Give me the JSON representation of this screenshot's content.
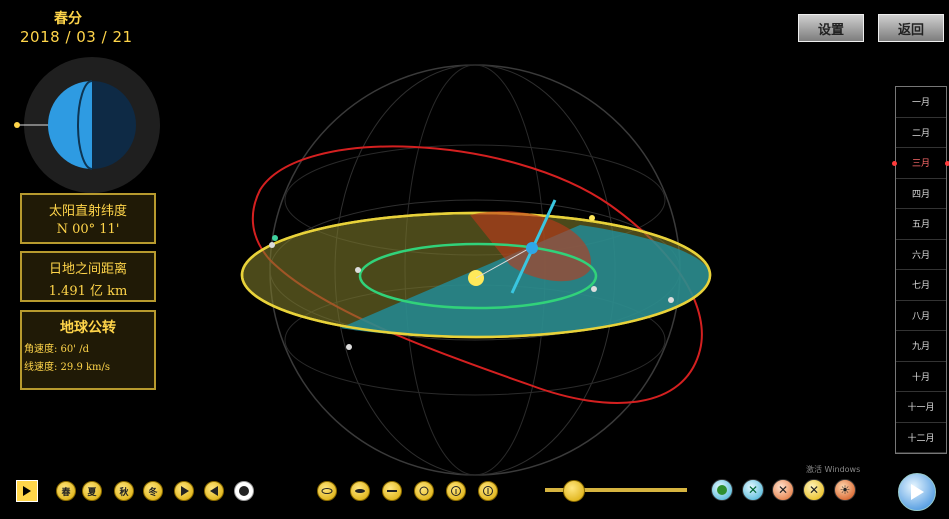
{
  "header": {
    "season": "春分",
    "date": "2018  / 03  / 21"
  },
  "info": {
    "lat_title": "太阳直射纬度",
    "lat_value": "N 00°  11'",
    "dist_title": "日地之间距离",
    "dist_value": "1.491 亿 km",
    "orbit_title": "地球公转",
    "angular_speed": "角速度: 60'  /d",
    "linear_speed": "线速度: 29.9 km/s"
  },
  "top_buttons": {
    "settings": "设置",
    "back": "返回"
  },
  "months": [
    "一月",
    "二月",
    "三月",
    "四月",
    "五月",
    "六月",
    "七月",
    "八月",
    "九月",
    "十月",
    "十一月",
    "十二月"
  ],
  "active_month_index": 2,
  "toolbar": {
    "left_buttons": [
      "春",
      "夏",
      "秋",
      "冬"
    ],
    "watermark": "激活 Windows"
  },
  "slider": {
    "value_fraction": 0.2
  },
  "colors": {
    "accent": "#ffd54a",
    "orbit_red": "#d42020",
    "ecliptic_yellow": "#e8d23a",
    "teal": "#1f8f9c"
  }
}
